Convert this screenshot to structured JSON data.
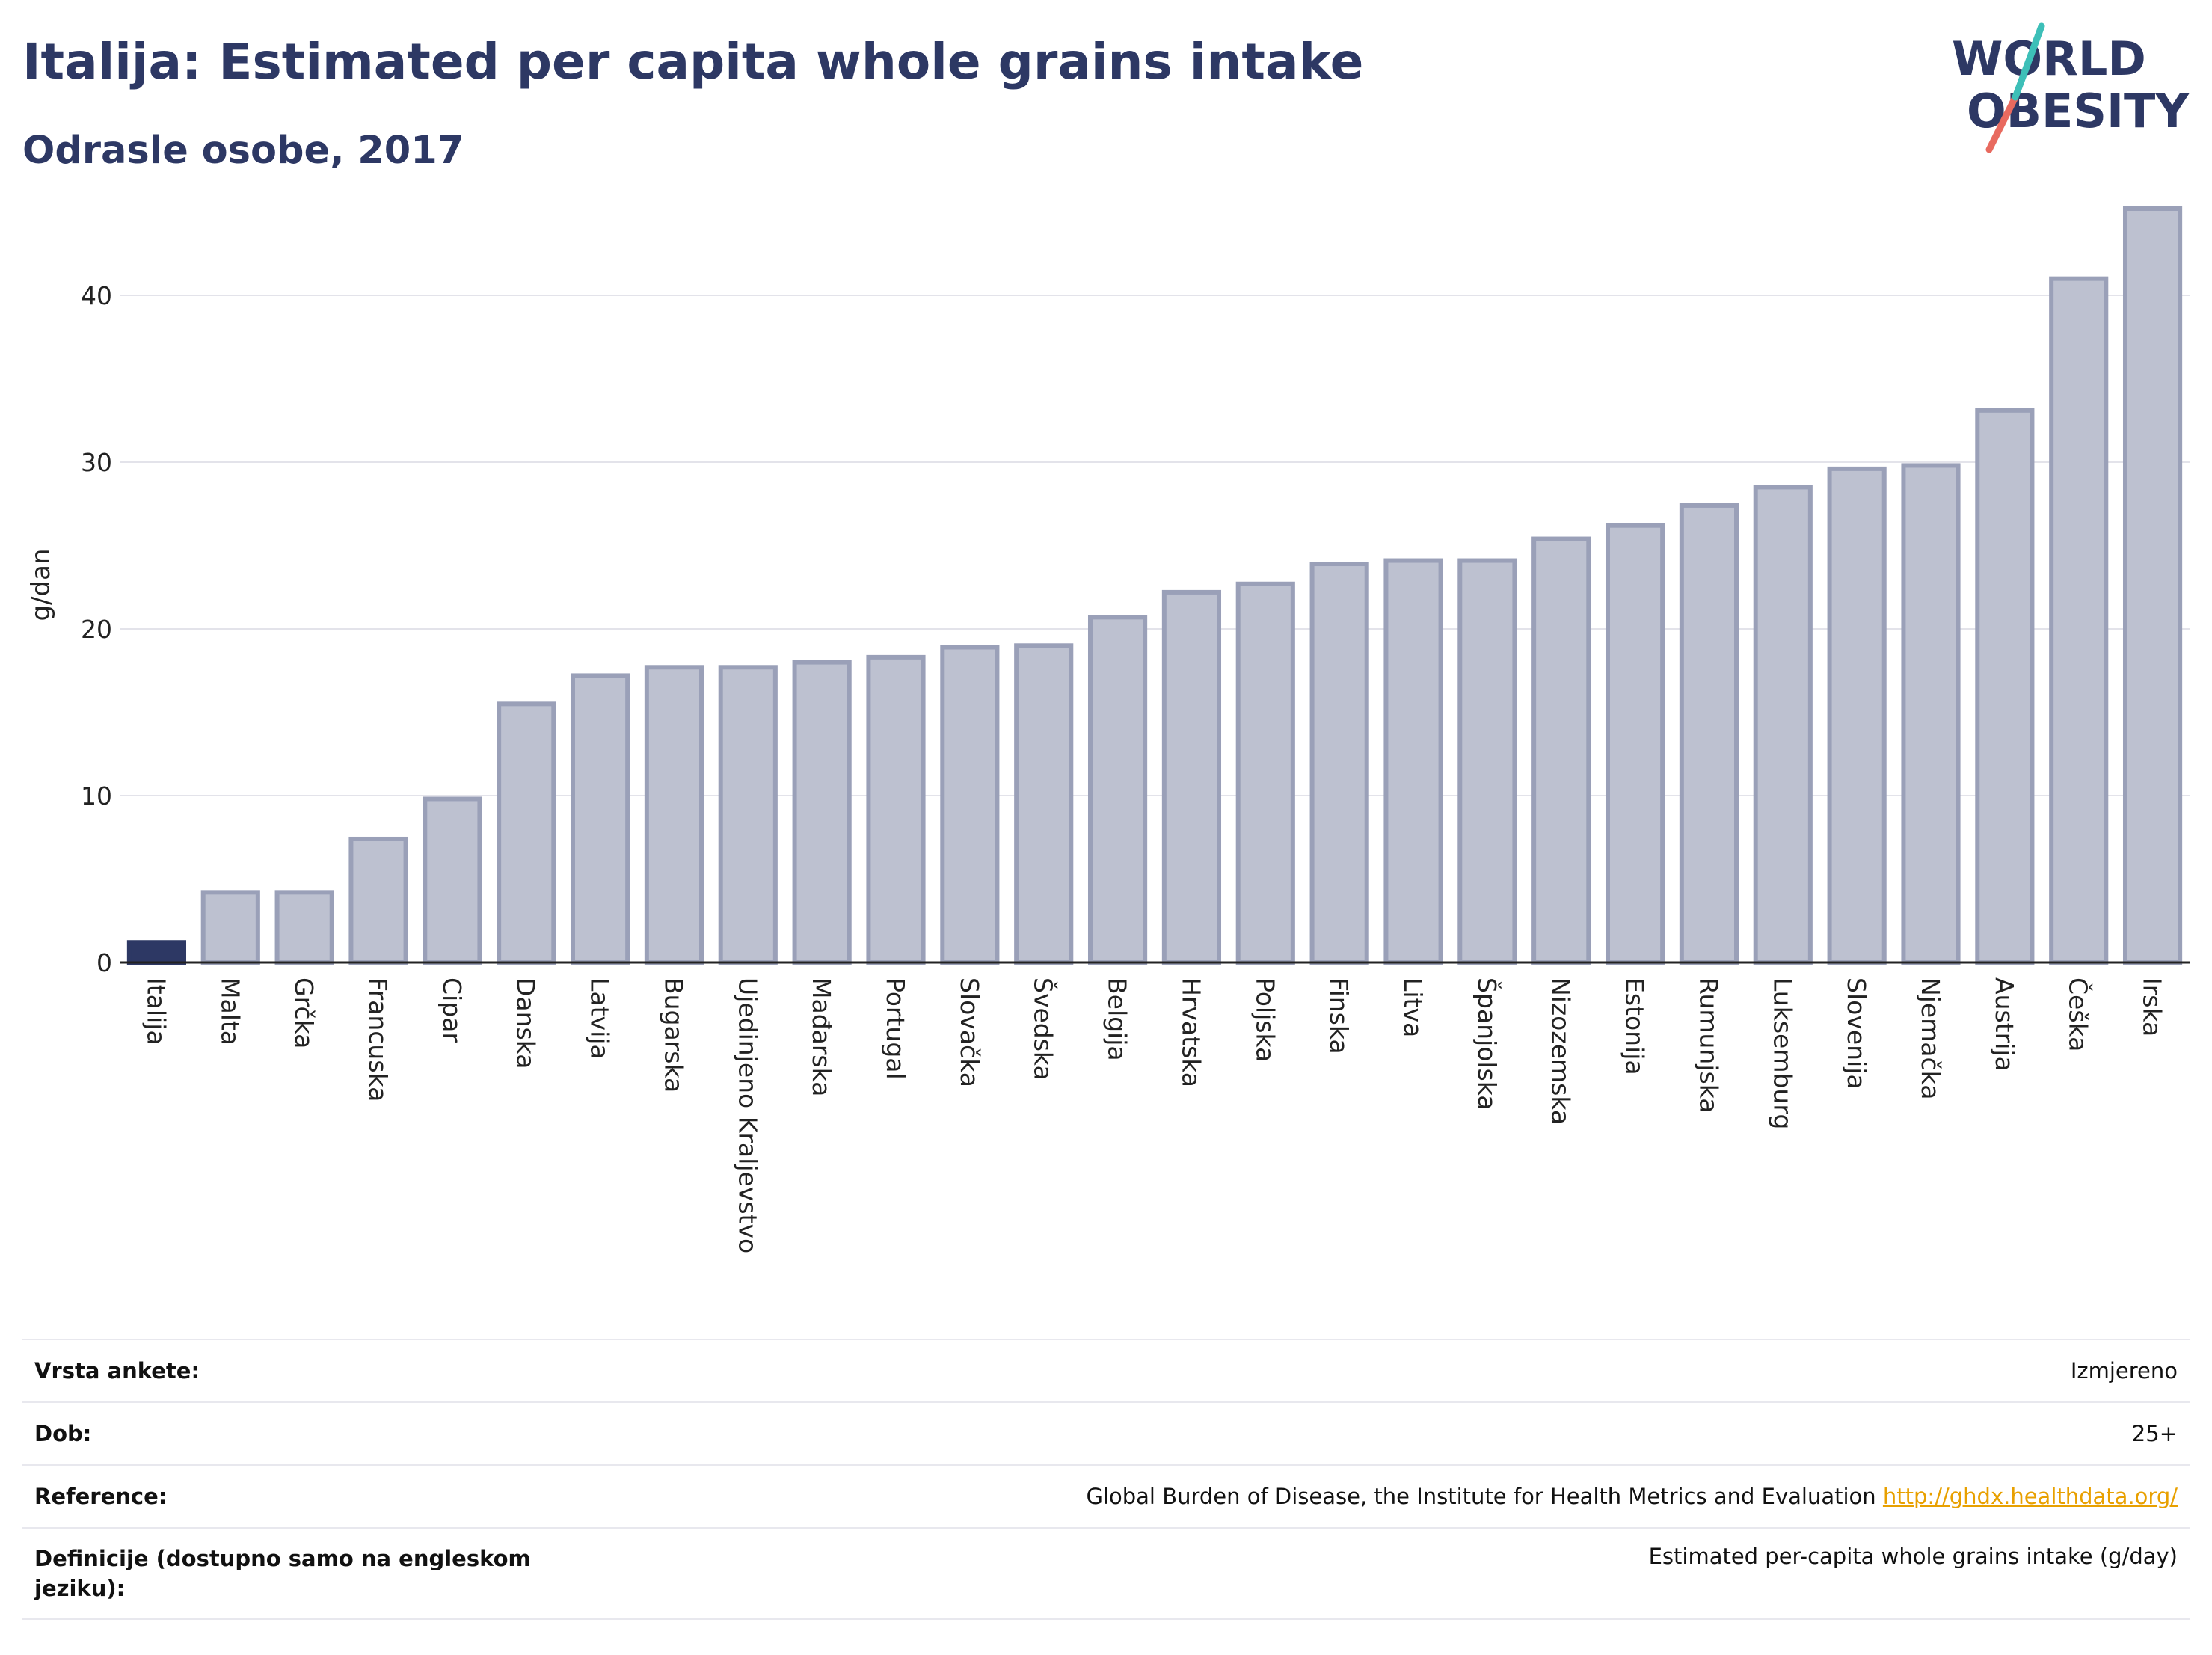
{
  "header": {
    "title": "Italija: Estimated per capita whole grains intake",
    "subtitle": "Odrasle osobe, 2017"
  },
  "logo": {
    "line1": "WORLD",
    "line2": "OBESITY",
    "colors": {
      "text": "#2d3864",
      "slash_teal": "#3dbfb8",
      "slash_red": "#e86a5f"
    }
  },
  "colors": {
    "highlight_bar": "#2d3864",
    "other_bar_fill": "#bdc1d0",
    "other_bar_stroke": "#9aa0b8",
    "grid": "#e3e3ea",
    "axis": "#222222",
    "link": "#e8a000"
  },
  "chart_data": {
    "type": "bar",
    "ylabel": "g/dan",
    "ylim": [
      0,
      46.5
    ],
    "yticks": [
      0,
      10,
      20,
      30,
      40
    ],
    "grid": true,
    "highlight": "Italija",
    "categories": [
      "Italija",
      "Malta",
      "Grčka",
      "Francuska",
      "Cipar",
      "Danska",
      "Latvija",
      "Bugarska",
      "Ujedinjeno Kraljevstvo",
      "Mađarska",
      "Portugal",
      "Slovačka",
      "Švedska",
      "Belgija",
      "Hrvatska",
      "Poljska",
      "Finska",
      "Litva",
      "Španjolska",
      "Nizozemska",
      "Estonija",
      "Rumunjska",
      "Luksemburg",
      "Slovenija",
      "Njemačka",
      "Austrija",
      "Češka",
      "Irska"
    ],
    "values": [
      1.2,
      4.2,
      4.2,
      7.4,
      9.8,
      15.5,
      17.2,
      17.7,
      17.7,
      18.0,
      18.3,
      18.9,
      19.0,
      20.7,
      22.2,
      22.7,
      23.9,
      24.1,
      24.1,
      25.4,
      26.2,
      27.4,
      28.5,
      29.6,
      29.8,
      33.1,
      41.0,
      45.2
    ]
  },
  "info": {
    "rows": [
      {
        "label": "Vrsta ankete:",
        "value": "Izmjereno",
        "link": ""
      },
      {
        "label": "Dob:",
        "value": "25+",
        "link": ""
      },
      {
        "label": "Reference:",
        "value": "Global Burden of Disease, the Institute for Health Metrics and Evaluation",
        "link": "http://ghdx.healthdata.org/"
      },
      {
        "label": "Definicije (dostupno samo na engleskom jeziku):",
        "value": "Estimated per-capita whole grains intake (g/day)",
        "link": ""
      }
    ]
  }
}
